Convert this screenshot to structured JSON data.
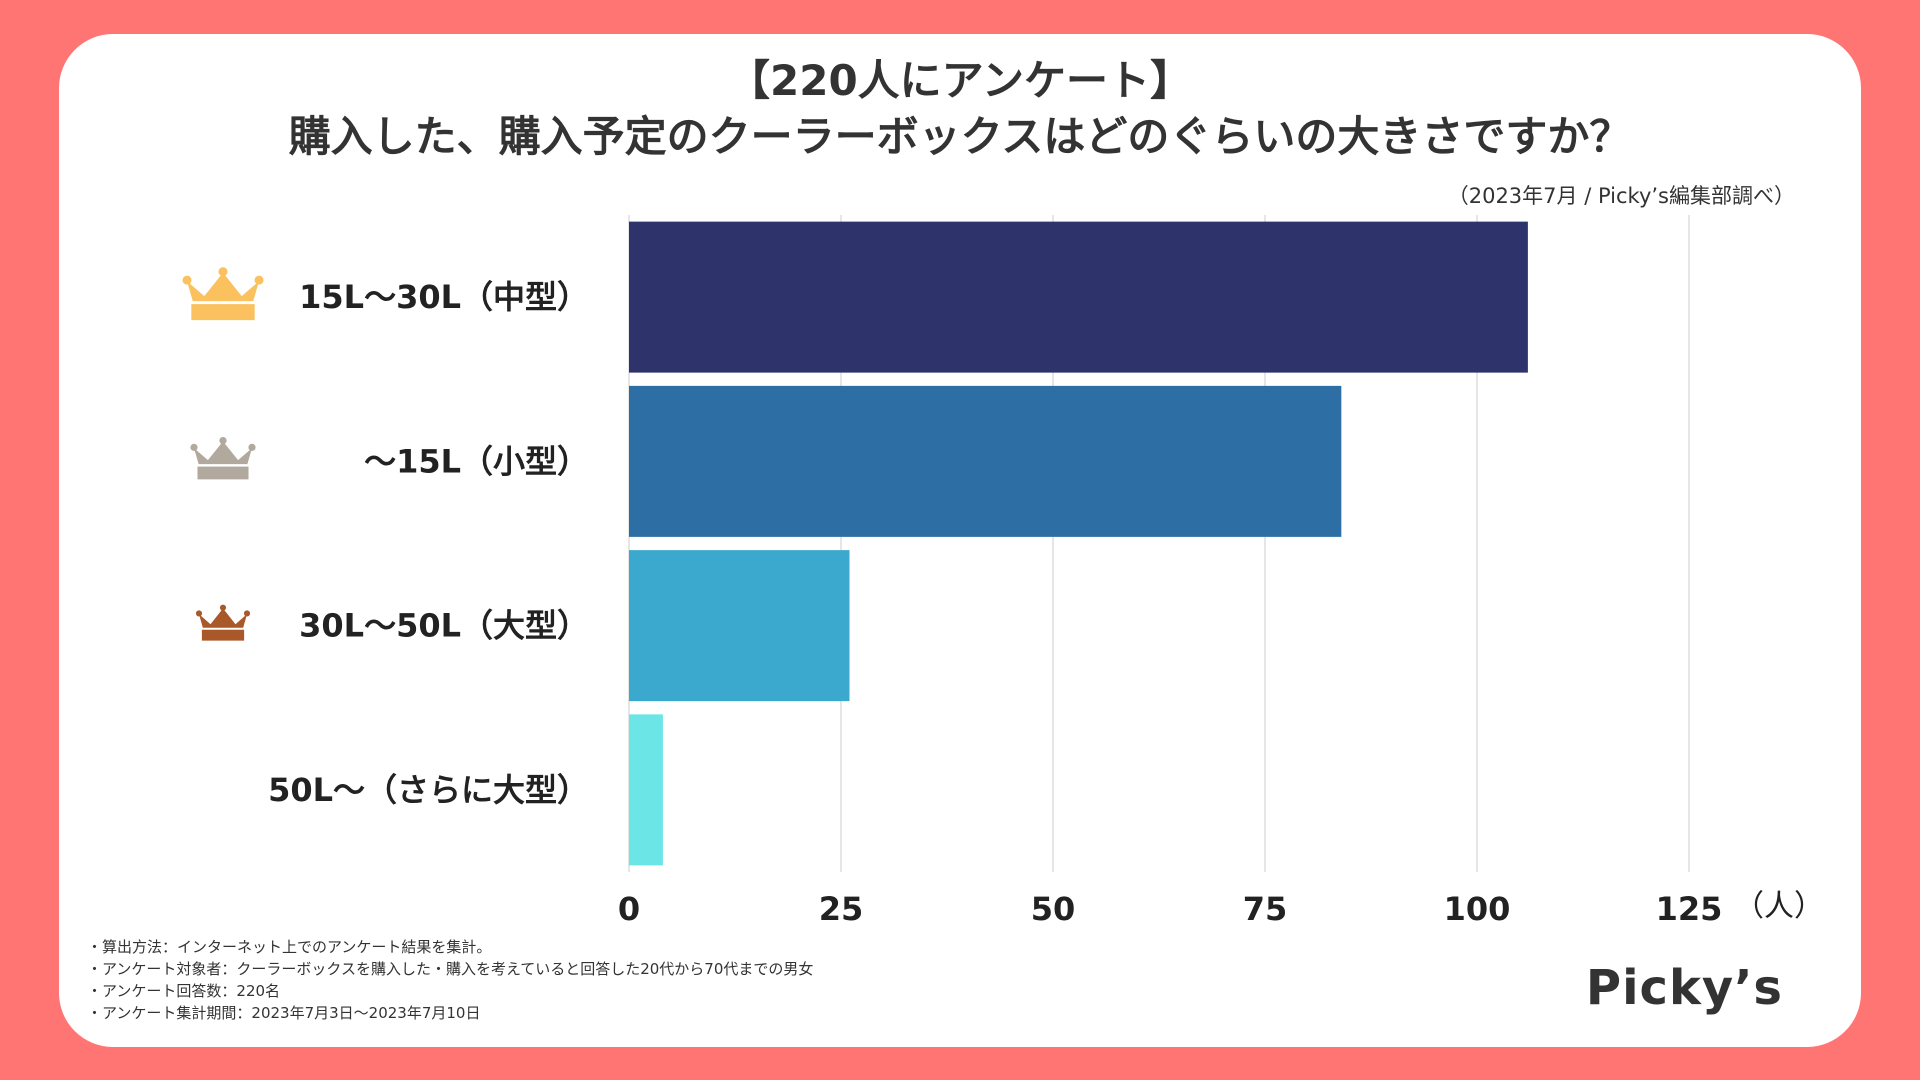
{
  "title_line1": "【220人にアンケート】",
  "title_line2": "購入した、購入予定のクーラーボックスはどのぐらいの大きさですか？",
  "source": "（2023年7月 / Picky’s編集部調べ）",
  "notes": [
    "・算出方法：インターネット上でのアンケート結果を集計。",
    "・アンケート対象者：クーラーボックスを購入した・購入を考えていると回答した20代から70代までの男女",
    "・アンケート回答数：220名",
    "・アンケート集計期間：2023年7月3日〜2023年7月10日"
  ],
  "logo": "Picky’s",
  "colors": {
    "background": "#FF7574",
    "card": "#FFFFFF",
    "crown_gold": "#FBC15E",
    "crown_silver": "#B1A89E",
    "crown_bronze": "#A9582A"
  },
  "chart_data": {
    "type": "bar",
    "orientation": "horizontal",
    "categories": [
      "15L〜30L（中型）",
      "〜15L（小型）",
      "30L〜50L（大型）",
      "50L〜（さらに大型）"
    ],
    "values": [
      106,
      84,
      26,
      4
    ],
    "bar_colors": [
      "#2F336B",
      "#2D6EA4",
      "#3BA8CE",
      "#6BE5E6"
    ],
    "rank_icons": [
      "crown-gold",
      "crown-silver",
      "crown-bronze",
      ""
    ],
    "xlim": [
      0,
      125
    ],
    "xticks": [
      0,
      25,
      50,
      75,
      100,
      125
    ],
    "tick_labels": [
      "0",
      "25",
      "50",
      "75",
      "100",
      "125"
    ],
    "xlabel": "（人）",
    "grid": true
  }
}
